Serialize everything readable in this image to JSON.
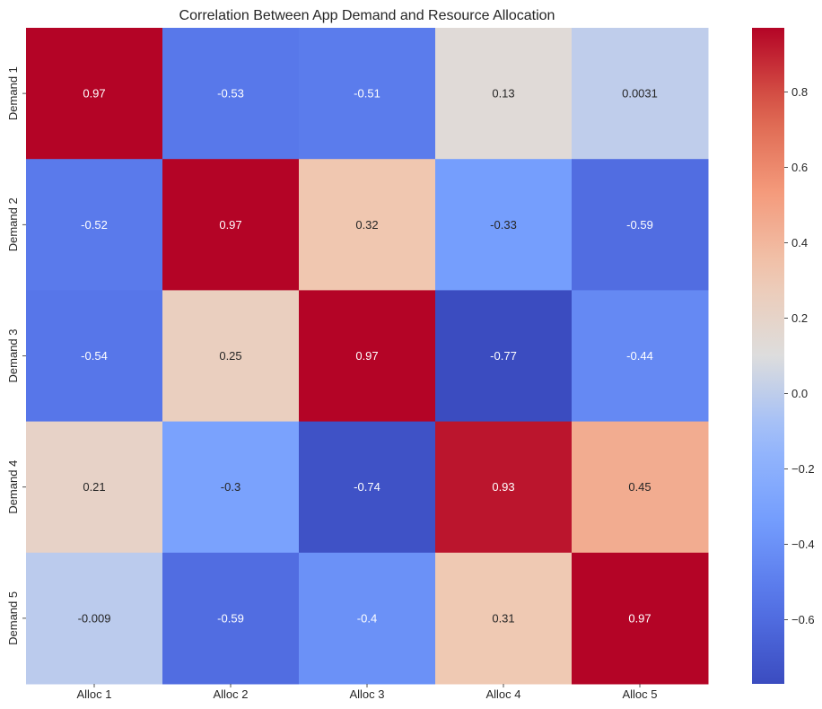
{
  "chart_data": {
    "type": "heatmap",
    "title": "Correlation Between App Demand and Resource Allocation",
    "xlabel": "",
    "ylabel": "",
    "x_categories": [
      "Alloc 1",
      "Alloc 2",
      "Alloc 3",
      "Alloc 4",
      "Alloc 5"
    ],
    "y_categories": [
      "Demand 1",
      "Demand 2",
      "Demand 3",
      "Demand 4",
      "Demand 5"
    ],
    "values": [
      [
        0.97,
        -0.53,
        -0.51,
        0.13,
        0.0031
      ],
      [
        -0.52,
        0.97,
        0.32,
        -0.33,
        -0.59
      ],
      [
        -0.54,
        0.25,
        0.97,
        -0.77,
        -0.44
      ],
      [
        0.21,
        -0.3,
        -0.74,
        0.93,
        0.45
      ],
      [
        -0.009,
        -0.59,
        -0.4,
        0.31,
        0.97
      ]
    ],
    "value_labels": [
      [
        "0.97",
        "-0.53",
        "-0.51",
        "0.13",
        "0.0031"
      ],
      [
        "-0.52",
        "0.97",
        "0.32",
        "-0.33",
        "-0.59"
      ],
      [
        "-0.54",
        "0.25",
        "0.97",
        "-0.77",
        "-0.44"
      ],
      [
        "0.21",
        "-0.3",
        "-0.74",
        "0.93",
        "0.45"
      ],
      [
        "-0.009",
        "-0.59",
        "-0.4",
        "0.31",
        "0.97"
      ]
    ],
    "colormap": "coolwarm",
    "vmin": -0.77,
    "vmax": 0.97,
    "colorbar_ticks": [
      0.8,
      0.6,
      0.4,
      0.2,
      0.0,
      -0.2,
      -0.4,
      -0.6
    ],
    "colorbar_tick_labels": [
      "0.8",
      "0.6",
      "0.4",
      "0.2",
      "0.0",
      "−0.2",
      "−0.4",
      "−0.6"
    ],
    "grid": false,
    "legend": "colorbar-right"
  }
}
